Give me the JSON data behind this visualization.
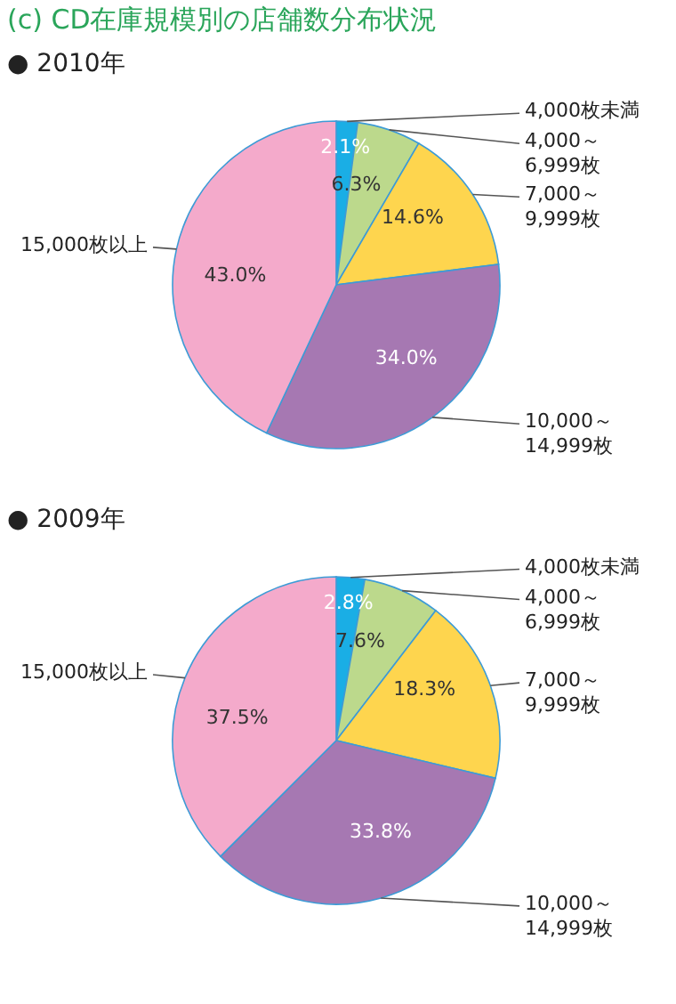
{
  "chart_data": [
    {
      "type": "pie",
      "title": "(c) CD在庫規模別の店舗数分布状況",
      "subtitle": "● 2010年",
      "categories": [
        "4,000枚未満",
        "4,000～6,999枚",
        "7,000～9,999枚",
        "10,000～14,999枚",
        "15,000枚以上"
      ],
      "values": [
        2.1,
        6.3,
        14.6,
        34.0,
        43.0
      ],
      "value_labels": [
        "2.1%",
        "6.3%",
        "14.6%",
        "34.0%",
        "43.0%"
      ],
      "colors": [
        "#1aaee5",
        "#bcd98c",
        "#fed54e",
        "#a678b2",
        "#f4aacb"
      ]
    },
    {
      "type": "pie",
      "subtitle": "● 2009年",
      "categories": [
        "4,000枚未満",
        "4,000～6,999枚",
        "7,000～9,999枚",
        "10,000～14,999枚",
        "15,000枚以上"
      ],
      "values": [
        2.8,
        7.6,
        18.3,
        33.8,
        37.5
      ],
      "value_labels": [
        "2.8%",
        "7.6%",
        "18.3%",
        "33.8%",
        "37.5%"
      ],
      "colors": [
        "#1aaee5",
        "#bcd98c",
        "#fed54e",
        "#a678b2",
        "#f4aacb"
      ]
    }
  ]
}
